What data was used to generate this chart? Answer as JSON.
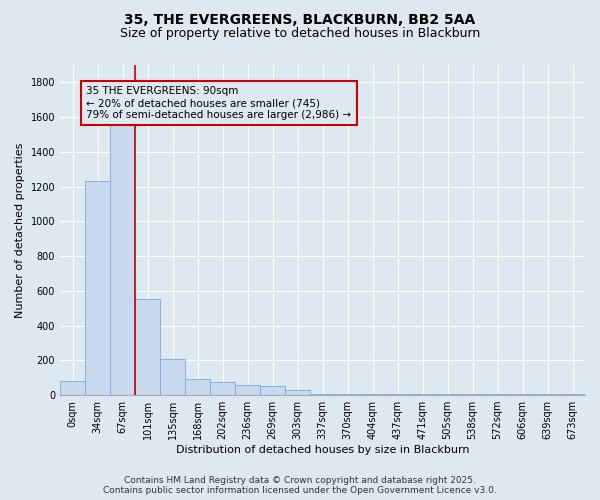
{
  "title_line1": "35, THE EVERGREENS, BLACKBURN, BB2 5AA",
  "title_line2": "Size of property relative to detached houses in Blackburn",
  "xlabel": "Distribution of detached houses by size in Blackburn",
  "ylabel": "Number of detached properties",
  "bar_color": "#c8d8ee",
  "bar_edge_color": "#7aaadd",
  "background_color": "#dde8f0",
  "grid_color": "#ffffff",
  "annotation_box_color": "#cc0000",
  "vline_color": "#cc0000",
  "annotation_text": "35 THE EVERGREENS: 90sqm\n← 20% of detached houses are smaller (745)\n79% of semi-detached houses are larger (2,986) →",
  "footer_line1": "Contains HM Land Registry data © Crown copyright and database right 2025.",
  "footer_line2": "Contains public sector information licensed under the Open Government Licence v3.0.",
  "categories": [
    "0sqm",
    "34sqm",
    "67sqm",
    "101sqm",
    "135sqm",
    "168sqm",
    "202sqm",
    "236sqm",
    "269sqm",
    "303sqm",
    "337sqm",
    "370sqm",
    "404sqm",
    "437sqm",
    "471sqm",
    "505sqm",
    "538sqm",
    "572sqm",
    "606sqm",
    "639sqm",
    "673sqm"
  ],
  "bar_values": [
    80,
    1230,
    1650,
    555,
    210,
    95,
    75,
    60,
    50,
    30,
    5,
    5,
    5,
    5,
    5,
    5,
    5,
    5,
    5,
    5,
    5
  ],
  "ylim": [
    0,
    1900
  ],
  "yticks": [
    0,
    200,
    400,
    600,
    800,
    1000,
    1200,
    1400,
    1600,
    1800
  ],
  "vline_x": 2.5,
  "title_fontsize": 10,
  "subtitle_fontsize": 9,
  "label_fontsize": 8,
  "tick_fontsize": 7,
  "annotation_fontsize": 7.5,
  "footer_fontsize": 6.5
}
